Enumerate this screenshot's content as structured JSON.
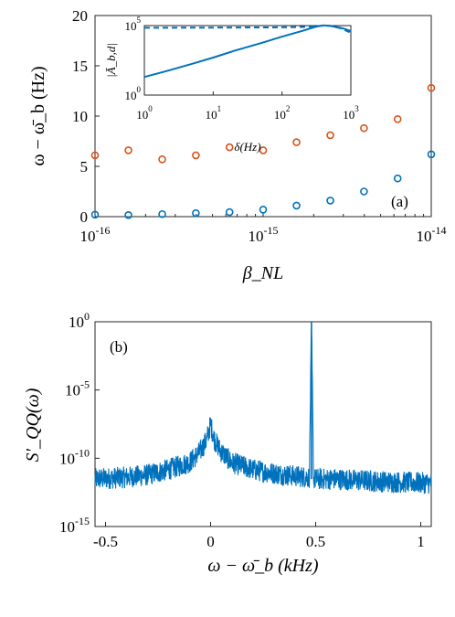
{
  "chart_data": [
    {
      "id": "panel-a",
      "type": "scatter",
      "panel_label": "(a)",
      "xlabel": "β_NL",
      "ylabel": "ω − ω̄_b (Hz)",
      "x_scale": "log",
      "xlim": [
        1e-16,
        1e-14
      ],
      "ylim": [
        0,
        20
      ],
      "x_ticks": [
        {
          "mant": "10",
          "exp": "-16"
        },
        {
          "mant": "10",
          "exp": "-15"
        },
        {
          "mant": "10",
          "exp": "-14"
        }
      ],
      "y_ticks": [
        "0",
        "5",
        "10",
        "15",
        "20"
      ],
      "colors": {
        "series1": "#D95319",
        "series2": "#0072BD"
      },
      "series": [
        {
          "color_key": "series1",
          "x": [
            1e-16,
            1.58e-16,
            2.51e-16,
            3.98e-16,
            6.31e-16,
            1e-15,
            1.58e-15,
            2.51e-15,
            3.98e-15,
            6.31e-15,
            1e-14
          ],
          "values": [
            6.1,
            6.6,
            5.7,
            6.1,
            6.9,
            6.6,
            7.4,
            8.1,
            8.8,
            9.7,
            12.8
          ]
        },
        {
          "color_key": "series2",
          "x": [
            1e-16,
            1.58e-16,
            2.51e-16,
            3.98e-16,
            6.31e-16,
            1e-15,
            1.58e-15,
            2.51e-15,
            3.98e-15,
            6.31e-15,
            1e-14
          ],
          "values": [
            0.2,
            0.15,
            0.25,
            0.35,
            0.45,
            0.7,
            1.1,
            1.6,
            2.5,
            3.8,
            6.2
          ]
        }
      ]
    },
    {
      "id": "panel-a-inset",
      "type": "line",
      "xlabel": "δ(Hz)",
      "ylabel": "|Ā_b,d|",
      "x_scale": "log",
      "y_scale": "log",
      "xlim": [
        1,
        1000
      ],
      "ylim": [
        1,
        100000
      ],
      "x_ticks": [
        {
          "mant": "10",
          "exp": "0"
        },
        {
          "mant": "10",
          "exp": "1"
        },
        {
          "mant": "10",
          "exp": "2"
        },
        {
          "mant": "10",
          "exp": "3"
        }
      ],
      "y_ticks": [
        {
          "mant": "10",
          "exp": "0"
        },
        {
          "mant": "10",
          "exp": "5"
        }
      ],
      "series": [
        {
          "style": "solid",
          "x": [
            1,
            2,
            5,
            10,
            20,
            50,
            100,
            200,
            300,
            400,
            500,
            600,
            700,
            800,
            1000
          ],
          "values": [
            20,
            50,
            180,
            500,
            1500,
            5500,
            16000,
            42000,
            80000,
            105000,
            95000,
            80000,
            70000,
            60000,
            40000
          ]
        },
        {
          "style": "dashed",
          "x": [
            1,
            10,
            100,
            200,
            300,
            400,
            500,
            600,
            700,
            800,
            1000
          ],
          "values": [
            70000,
            72000,
            75000,
            80000,
            90000,
            100000,
            95000,
            80000,
            65000,
            50000,
            30000
          ]
        }
      ]
    },
    {
      "id": "panel-b",
      "type": "line",
      "panel_label": "(b)",
      "xlabel": "ω − ω̄_b (kHz)",
      "ylabel": "S′_QQ(ω)",
      "y_scale": "log",
      "xlim": [
        -0.55,
        1.05
      ],
      "ylim": [
        1e-15,
        1
      ],
      "x_ticks": [
        "-0.5",
        "0",
        "0.5",
        "1"
      ],
      "y_ticks": [
        {
          "mant": "10",
          "exp": "0"
        },
        {
          "mant": "10",
          "exp": "-5"
        },
        {
          "mant": "10",
          "exp": "-10"
        },
        {
          "mant": "10",
          "exp": "-15"
        }
      ],
      "series": [
        {
          "name": "",
          "x": [
            -0.55,
            -0.4,
            -0.3,
            -0.2,
            -0.1,
            -0.05,
            -0.02,
            0,
            0.02,
            0.05,
            0.1,
            0.2,
            0.3,
            0.4,
            0.47,
            0.48,
            0.49,
            0.5,
            0.6,
            0.8,
            1.05
          ],
          "values": [
            3e-12,
            4e-12,
            6e-12,
            1.5e-11,
            5e-11,
            3e-10,
            2e-09,
            3e-08,
            2e-09,
            3e-10,
            5e-11,
            1.5e-11,
            8e-12,
            5e-12,
            4e-12,
            1,
            3e-12,
            3e-12,
            3e-12,
            2e-12,
            1.5e-12
          ]
        }
      ]
    }
  ]
}
